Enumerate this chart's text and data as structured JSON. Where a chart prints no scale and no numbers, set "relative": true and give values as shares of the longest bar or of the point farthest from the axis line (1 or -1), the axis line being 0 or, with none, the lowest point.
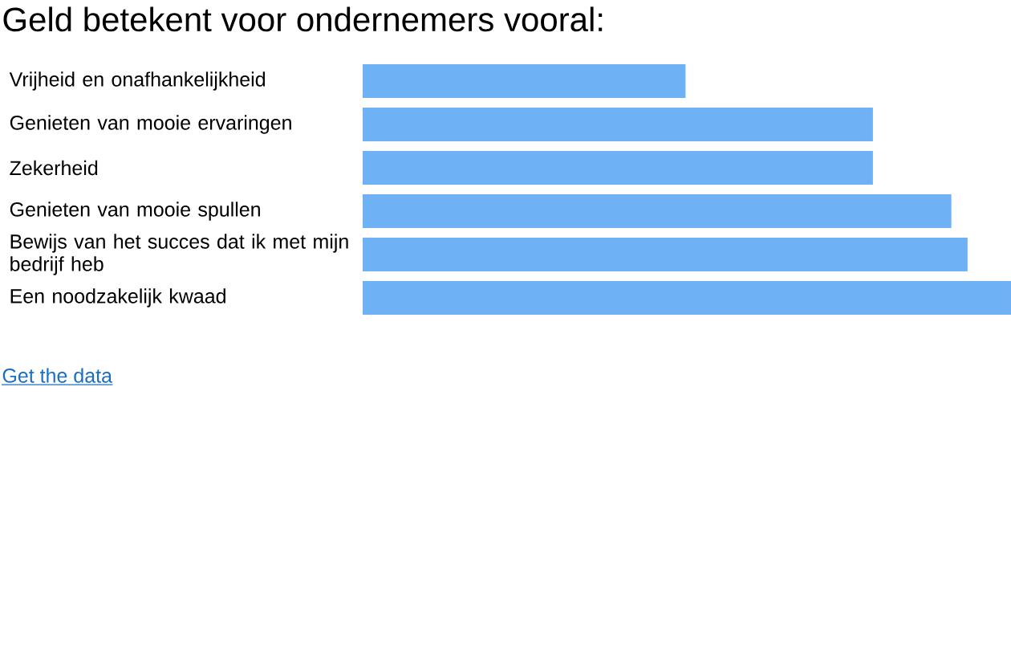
{
  "chart_data": {
    "type": "bar",
    "orientation": "horizontal",
    "relative": true,
    "title": "Geld betekent voor ondernemers vooral:",
    "categories": [
      "Vrijheid en onafhankelijkheid",
      "Genieten van mooie ervaringen",
      "Zekerheid",
      "Genieten van mooie spullen",
      "Bewijs van het succes dat ik met mijn bedrijf heb",
      "Een noodzakelijk kwaad"
    ],
    "values": [
      0.498,
      0.787,
      0.787,
      0.908,
      0.933,
      1
    ],
    "color": "#6fb1f5",
    "annotations": [
      "Get the data"
    ]
  }
}
